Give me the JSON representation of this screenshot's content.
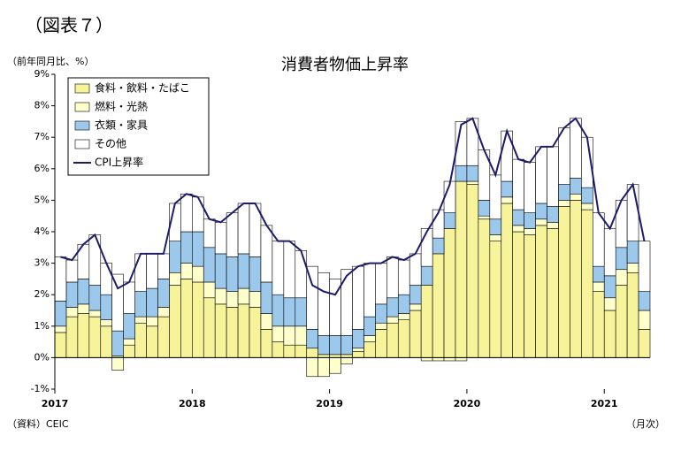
{
  "label": "（図表７）",
  "chart_data": {
    "type": "bar",
    "title": "消費者物価上昇率",
    "y_label": "（前年同月比、%）",
    "x_label": "（月次）",
    "source": "（資料）CEIC",
    "categories": [
      "2017",
      null,
      null,
      null,
      null,
      null,
      null,
      null,
      null,
      null,
      null,
      null,
      "2018",
      null,
      null,
      null,
      null,
      null,
      null,
      null,
      null,
      null,
      null,
      null,
      "2019",
      null,
      null,
      null,
      null,
      null,
      null,
      null,
      null,
      null,
      null,
      null,
      "2020",
      null,
      null,
      null,
      null,
      null,
      null,
      null,
      null,
      null,
      null,
      null,
      "2021",
      null,
      null,
      null
    ],
    "ylim": [
      -1,
      9
    ],
    "yticks": [
      {
        "value": -1,
        "label": "-1%"
      },
      {
        "value": 0,
        "label": "0%"
      },
      {
        "value": 1,
        "label": "1%"
      },
      {
        "value": 2,
        "label": "2%"
      },
      {
        "value": 3,
        "label": "3%"
      },
      {
        "value": 4,
        "label": "4%"
      },
      {
        "value": 5,
        "label": "5%"
      },
      {
        "value": 6,
        "label": "6%"
      },
      {
        "value": 7,
        "label": "7%"
      },
      {
        "value": 8,
        "label": "8%"
      },
      {
        "value": 9,
        "label": "9%"
      }
    ],
    "legend": "upper left",
    "stacked": true,
    "series": [
      {
        "name": "食料・飲料・たばこ",
        "type": "bar",
        "color": "#f7f39a",
        "values": [
          0.8,
          1.3,
          1.4,
          1.3,
          1.0,
          0.05,
          0.4,
          1.1,
          1.0,
          1.3,
          2.3,
          2.5,
          2.4,
          1.9,
          1.7,
          1.6,
          1.7,
          1.6,
          0.9,
          0.5,
          0.4,
          0.4,
          0.3,
          0.1,
          0.1,
          0.1,
          0.2,
          0.5,
          0.9,
          1.1,
          1.2,
          1.5,
          2.3,
          3.3,
          4.1,
          5.6,
          5.5,
          4.4,
          3.7,
          4.9,
          4.0,
          3.9,
          4.2,
          4.1,
          4.8,
          5.0,
          4.7,
          2.1,
          1.5,
          2.3,
          2.7,
          0.9
        ]
      },
      {
        "name": "燃料・光熱",
        "type": "bar",
        "color": "#ffffcc",
        "values": [
          0.2,
          0.3,
          0.3,
          0.2,
          0.2,
          -0.4,
          0.2,
          0.2,
          0.3,
          0.3,
          0.4,
          0.5,
          0.5,
          0.5,
          0.5,
          0.5,
          0.5,
          0.5,
          0.5,
          0.5,
          0.6,
          0.6,
          -0.6,
          -0.6,
          -0.5,
          -0.2,
          0.1,
          0.2,
          0.2,
          0.2,
          0.2,
          0.2,
          -0.1,
          -0.1,
          -0.1,
          -0.1,
          0.1,
          0.1,
          0.2,
          0.2,
          0.2,
          0.2,
          0.2,
          0.2,
          0.2,
          0.2,
          0.2,
          0.3,
          0.4,
          0.5,
          0.3,
          0.6
        ]
      },
      {
        "name": "衣類・家具",
        "type": "bar",
        "color": "#9cc8ec",
        "values": [
          0.8,
          0.8,
          0.8,
          0.8,
          0.8,
          0.8,
          0.8,
          0.8,
          0.9,
          0.9,
          1.0,
          1.0,
          1.1,
          1.1,
          1.1,
          1.1,
          1.1,
          1.1,
          1.0,
          1.0,
          0.9,
          0.9,
          0.6,
          0.6,
          0.6,
          0.6,
          0.6,
          0.6,
          0.6,
          0.6,
          0.6,
          0.6,
          0.6,
          0.5,
          0.5,
          0.5,
          0.5,
          0.5,
          0.5,
          0.5,
          0.5,
          0.5,
          0.5,
          0.5,
          0.5,
          0.5,
          0.5,
          0.5,
          0.7,
          0.7,
          0.7,
          0.6
        ]
      },
      {
        "name": "その他",
        "type": "bar",
        "color": "#ffffff",
        "values": [
          1.4,
          0.7,
          1.1,
          1.6,
          1.0,
          1.8,
          1.0,
          1.2,
          1.1,
          0.8,
          1.2,
          1.2,
          1.1,
          0.9,
          1.0,
          1.4,
          1.6,
          1.7,
          1.8,
          1.7,
          1.8,
          1.5,
          2.0,
          2.0,
          1.8,
          2.1,
          2.0,
          1.7,
          1.3,
          1.3,
          1.1,
          1.0,
          1.2,
          0.9,
          1.0,
          1.4,
          1.5,
          1.6,
          1.4,
          1.6,
          1.6,
          1.6,
          1.8,
          1.9,
          1.8,
          1.9,
          1.6,
          1.7,
          1.5,
          1.5,
          1.8,
          1.6
        ]
      },
      {
        "name": "CPI上昇率",
        "type": "line",
        "color": "#1c1c6b",
        "values": [
          3.2,
          3.1,
          3.6,
          3.9,
          3.0,
          2.2,
          2.4,
          3.3,
          3.3,
          3.3,
          4.9,
          5.2,
          5.1,
          4.4,
          4.3,
          4.6,
          4.9,
          4.9,
          4.2,
          3.7,
          3.7,
          3.4,
          2.3,
          2.1,
          2.0,
          2.6,
          2.9,
          3.0,
          3.0,
          3.2,
          3.1,
          3.3,
          4.0,
          4.6,
          5.5,
          7.4,
          7.6,
          6.6,
          5.8,
          7.2,
          6.3,
          6.2,
          6.7,
          6.7,
          7.3,
          7.6,
          7.0,
          4.6,
          4.1,
          5.0,
          5.5,
          3.7
        ]
      }
    ]
  }
}
